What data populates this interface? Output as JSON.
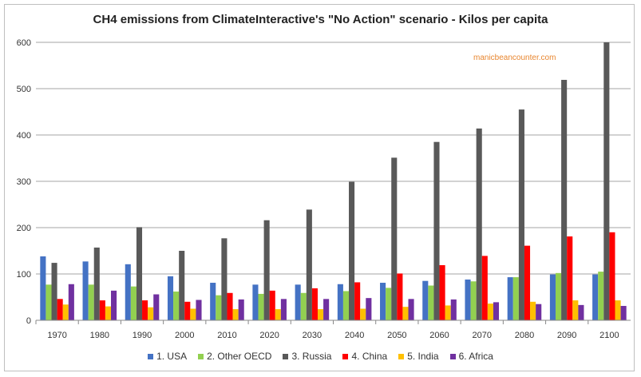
{
  "chart_data": {
    "type": "bar",
    "title": "CH4 emissions from ClimateInteractive's \"No Action\" scenario - Kilos per capita",
    "xlabel": "",
    "ylabel": "",
    "ylim": [
      0,
      600
    ],
    "yticks": [
      0,
      100,
      200,
      300,
      400,
      500,
      600
    ],
    "grid": true,
    "legend_position": "bottom",
    "annotation": "manicbeancounter.com",
    "categories": [
      "1970",
      "1980",
      "1990",
      "2000",
      "2010",
      "2020",
      "2030",
      "2040",
      "2050",
      "2060",
      "2070",
      "2080",
      "2090",
      "2100"
    ],
    "series": [
      {
        "name": "1. USA",
        "color": "#4472c4",
        "values": [
          138,
          127,
          121,
          95,
          81,
          77,
          77,
          78,
          81,
          85,
          88,
          93,
          99,
          99
        ]
      },
      {
        "name": "2. Other OECD",
        "color": "#92d050",
        "values": [
          77,
          77,
          73,
          62,
          54,
          57,
          59,
          63,
          70,
          75,
          84,
          93,
          102,
          105
        ]
      },
      {
        "name": "3. Russia",
        "color": "#595959",
        "values": [
          124,
          157,
          201,
          150,
          177,
          216,
          239,
          299,
          351,
          385,
          414,
          455,
          519,
          600
        ]
      },
      {
        "name": "4. China",
        "color": "#ff0000",
        "values": [
          46,
          43,
          43,
          40,
          59,
          64,
          69,
          82,
          101,
          119,
          139,
          161,
          181,
          190
        ]
      },
      {
        "name": "5. India",
        "color": "#ffc000",
        "values": [
          34,
          30,
          28,
          25,
          24,
          24,
          24,
          25,
          29,
          32,
          36,
          40,
          43,
          43
        ]
      },
      {
        "name": "6. Africa",
        "color": "#7030a0",
        "values": [
          78,
          64,
          56,
          44,
          45,
          46,
          46,
          48,
          46,
          45,
          39,
          35,
          33,
          31
        ]
      }
    ]
  }
}
